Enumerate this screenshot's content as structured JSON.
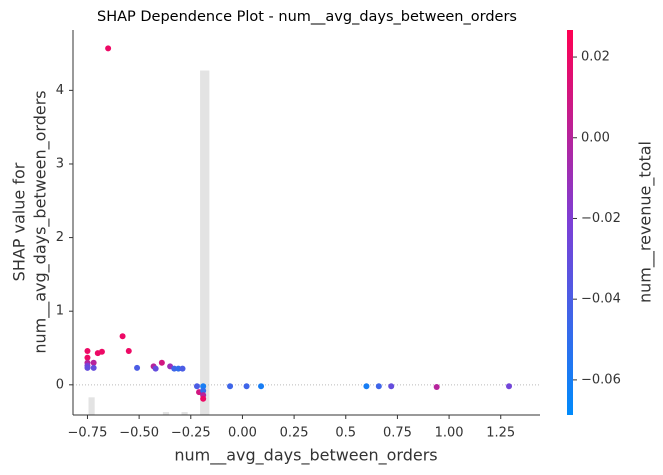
{
  "chart_data": {
    "type": "scatter",
    "title": "SHAP Dependence Plot - num__avg_days_between_orders",
    "xlabel": "num__avg_days_between_orders",
    "ylabel": [
      "SHAP value for",
      "num__avg_days_between_orders"
    ],
    "colorbar_label": "num__revenue_total",
    "xlim": [
      -0.82,
      1.44
    ],
    "ylim": [
      -0.41,
      4.82
    ],
    "clim": [
      -0.0687,
      0.0267
    ],
    "colormap": [
      "#008bfb",
      "#7c3fd6",
      "#ff0052"
    ],
    "hline": 0,
    "xticks": [
      {
        "value": -0.75,
        "label": "−0.75"
      },
      {
        "value": -0.5,
        "label": "−0.50"
      },
      {
        "value": -0.25,
        "label": "−0.25"
      },
      {
        "value": 0,
        "label": "0.00"
      },
      0.25,
      0.5,
      0.75,
      {
        "value": 1,
        "label": "1.00"
      },
      1.25
    ],
    "yticks": [
      0,
      1,
      2,
      3,
      4
    ],
    "cticks": [
      0.02,
      {
        "value": 0,
        "label": "0.00"
      },
      {
        "value": -0.02,
        "label": "−0.02"
      },
      {
        "value": -0.04,
        "label": "−0.04"
      },
      {
        "value": -0.06,
        "label": "−0.06"
      }
    ],
    "histogram": [
      {
        "x0": -0.745,
        "x1": -0.715,
        "top": -0.17
      },
      {
        "x0": -0.385,
        "x1": -0.355,
        "top": -0.37
      },
      {
        "x0": -0.295,
        "x1": -0.265,
        "top": -0.37
      },
      {
        "x0": -0.205,
        "x1": -0.16,
        "top": 4.27
      }
    ],
    "x": [
      -0.65,
      -0.75,
      -0.75,
      -0.75,
      -0.75,
      -0.75,
      -0.72,
      -0.72,
      -0.7,
      -0.68,
      -0.58,
      -0.55,
      -0.51,
      -0.43,
      -0.42,
      -0.39,
      -0.35,
      -0.33,
      -0.31,
      -0.29,
      -0.22,
      -0.21,
      -0.19,
      -0.19,
      -0.19,
      -0.19,
      -0.06,
      0.02,
      0.09,
      0.6,
      0.66,
      0.72,
      0.94,
      1.29
    ],
    "values": [
      4.57,
      0.46,
      0.37,
      0.3,
      0.26,
      0.23,
      0.3,
      0.23,
      0.43,
      0.45,
      0.66,
      0.46,
      0.23,
      0.25,
      0.22,
      0.3,
      0.25,
      0.22,
      0.22,
      0.22,
      -0.02,
      -0.1,
      -0.02,
      -0.08,
      -0.14,
      -0.19,
      -0.02,
      -0.02,
      -0.02,
      -0.02,
      -0.02,
      -0.02,
      -0.03,
      -0.02
    ],
    "color_values": [
      0.02,
      0.02,
      0.02,
      0.0,
      -0.02,
      -0.03,
      0.0,
      -0.03,
      0.02,
      0.02,
      0.02,
      0.02,
      -0.04,
      0.0,
      -0.03,
      0.01,
      -0.01,
      -0.045,
      -0.05,
      -0.04,
      -0.04,
      0.01,
      -0.06,
      -0.05,
      0.0,
      0.02,
      -0.045,
      -0.045,
      -0.06,
      -0.06,
      -0.045,
      -0.03,
      0.0,
      -0.025
    ]
  }
}
